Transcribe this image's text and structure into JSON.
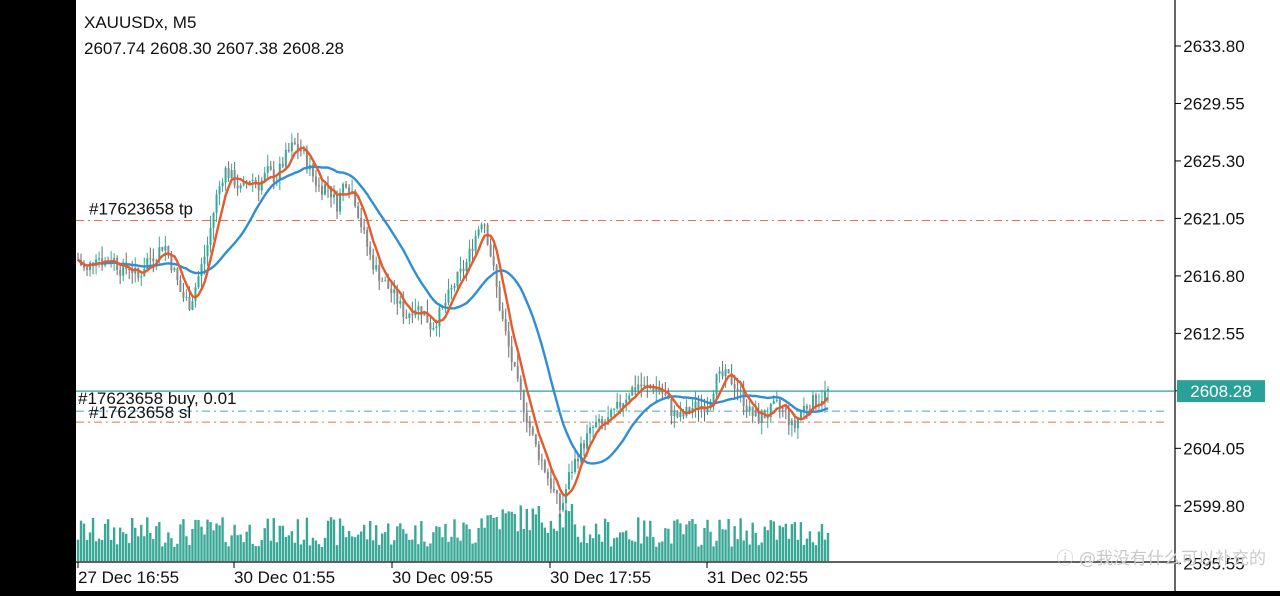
{
  "chart_data": {
    "type": "candlestick",
    "symbol": "XAUUSDx, M5",
    "ohlc": "2607.74 2608.30 2607.38 2608.28",
    "y_ticks": [
      "2633.80",
      "2629.55",
      "2625.30",
      "2621.05",
      "2616.80",
      "2612.55",
      "2608.30",
      "2604.05",
      "2599.80",
      "2595.55"
    ],
    "ylim": [
      2593.5,
      2637.2
    ],
    "x_ticks": [
      "27 Dec 16:55",
      "30 Dec 01:55",
      "30 Dec 09:55",
      "30 Dec 17:55",
      "31 Dec 02:55"
    ],
    "last_price": "2608.28",
    "last_price_value": 2608.28,
    "colors": {
      "background": "#ffffff",
      "line_price": "#2aa198",
      "ma_fast": "#e65a2b",
      "ma_slow": "#2f8ed6",
      "volume": "#3aa896",
      "order_line": "#e8704a",
      "entry_line": "#4aa3c8"
    },
    "orders": [
      {
        "label": "#17623658 tp",
        "value": 2620.9,
        "kind": "tp"
      },
      {
        "label": "#17623658 buy, 0.01",
        "value": 2608.3,
        "kind": "entry"
      },
      {
        "label": "#17623658 sl",
        "value": 2606.6,
        "kind": "sl"
      }
    ],
    "price_path": [
      [
        0,
        2618.0
      ],
      [
        4,
        2617.0
      ],
      [
        8,
        2618.5
      ],
      [
        12,
        2617.8
      ],
      [
        16,
        2618.2
      ],
      [
        20,
        2617.2
      ],
      [
        24,
        2617.5
      ],
      [
        28,
        2616.6
      ],
      [
        32,
        2618.0
      ],
      [
        36,
        2618.4
      ],
      [
        40,
        2619.2
      ],
      [
        44,
        2617.4
      ],
      [
        48,
        2615.4
      ],
      [
        52,
        2614.7
      ],
      [
        56,
        2616.8
      ],
      [
        60,
        2619.0
      ],
      [
        64,
        2622.5
      ],
      [
        68,
        2624.7
      ],
      [
        72,
        2624.0
      ],
      [
        76,
        2623.0
      ],
      [
        80,
        2624.1
      ],
      [
        84,
        2623.5
      ],
      [
        88,
        2624.5
      ],
      [
        92,
        2624.0
      ],
      [
        96,
        2625.5
      ],
      [
        100,
        2626.5
      ],
      [
        104,
        2626.0
      ],
      [
        108,
        2624.5
      ],
      [
        112,
        2623.3
      ],
      [
        116,
        2623.5
      ],
      [
        120,
        2622.0
      ],
      [
        124,
        2624.0
      ],
      [
        128,
        2622.8
      ],
      [
        132,
        2620.2
      ],
      [
        136,
        2618.0
      ],
      [
        140,
        2616.8
      ],
      [
        144,
        2615.9
      ],
      [
        148,
        2615.0
      ],
      [
        152,
        2613.8
      ],
      [
        156,
        2614.6
      ],
      [
        160,
        2614.2
      ],
      [
        164,
        2613.0
      ],
      [
        168,
        2614.0
      ],
      [
        172,
        2615.3
      ],
      [
        176,
        2616.6
      ],
      [
        180,
        2617.6
      ],
      [
        184,
        2619.6
      ],
      [
        188,
        2621.3
      ],
      [
        192,
        2618.0
      ],
      [
        196,
        2614.2
      ],
      [
        200,
        2611.4
      ],
      [
        204,
        2608.7
      ],
      [
        208,
        2606.5
      ],
      [
        212,
        2604.3
      ],
      [
        216,
        2602.8
      ],
      [
        220,
        2601.1
      ],
      [
        224,
        2599.4
      ],
      [
        228,
        2602.1
      ],
      [
        232,
        2603.6
      ],
      [
        236,
        2604.8
      ],
      [
        240,
        2605.8
      ],
      [
        244,
        2605.7
      ],
      [
        248,
        2606.5
      ],
      [
        252,
        2607.4
      ],
      [
        256,
        2608.3
      ],
      [
        260,
        2608.8
      ],
      [
        264,
        2608.4
      ],
      [
        268,
        2608.6
      ],
      [
        272,
        2608.0
      ],
      [
        276,
        2606.6
      ],
      [
        280,
        2606.3
      ],
      [
        284,
        2607.0
      ],
      [
        288,
        2607.2
      ],
      [
        292,
        2607.3
      ],
      [
        296,
        2609.1
      ],
      [
        300,
        2609.4
      ],
      [
        304,
        2609.0
      ],
      [
        308,
        2607.9
      ],
      [
        312,
        2606.6
      ],
      [
        316,
        2606.3
      ],
      [
        320,
        2606.6
      ],
      [
        324,
        2607.2
      ],
      [
        328,
        2606.8
      ],
      [
        332,
        2605.4
      ],
      [
        336,
        2607.0
      ],
      [
        340,
        2607.4
      ],
      [
        344,
        2607.7
      ],
      [
        348,
        2608.28
      ]
    ]
  }
}
